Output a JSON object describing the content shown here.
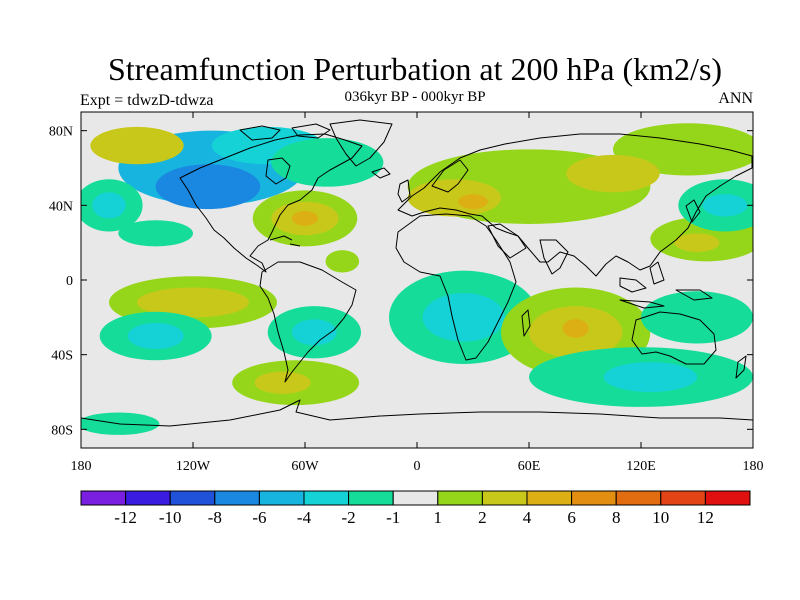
{
  "title": "Streamfunction Perturbation at 200 hPa (km2/s)",
  "subtitle": "036kyr BP - 000kyr BP",
  "left_label": "Expt = tdwzD-tdwza",
  "right_label": "ANN",
  "map": {
    "projection": "cylindrical equidistant",
    "lon_range": [
      -180,
      180
    ],
    "lat_range": [
      -90,
      90
    ],
    "background_color": "#e8e8e8",
    "y_ticks": [
      {
        "lat": 80,
        "label": "80N"
      },
      {
        "lat": 40,
        "label": "40N"
      },
      {
        "lat": 0,
        "label": "0"
      },
      {
        "lat": -40,
        "label": "40S"
      },
      {
        "lat": -80,
        "label": "80S"
      }
    ],
    "x_ticks": [
      {
        "lon": -180,
        "label": "180"
      },
      {
        "lon": -120,
        "label": "120W"
      },
      {
        "lon": -60,
        "label": "60W"
      },
      {
        "lon": 0,
        "label": "0"
      },
      {
        "lon": 60,
        "label": "60E"
      },
      {
        "lon": 120,
        "label": "120E"
      },
      {
        "lon": 180,
        "label": "180"
      }
    ]
  },
  "colorbar": {
    "colors": [
      "#7a1fe0",
      "#3a1be0",
      "#1f52d8",
      "#1a87e0",
      "#18b4e0",
      "#14d2d6",
      "#16dc9a",
      "#e8e8e8",
      "#96d61a",
      "#c8c81a",
      "#dcb014",
      "#e28e10",
      "#e26c10",
      "#e24416",
      "#e01010"
    ],
    "labels": [
      "-12",
      "-10",
      "-8",
      "-6",
      "-4",
      "-2",
      "-1",
      "1",
      "2",
      "4",
      "6",
      "8",
      "10",
      "12"
    ]
  },
  "anomalies": [
    {
      "lon": -110,
      "lat": 60,
      "rx": 50,
      "ry": 20,
      "level": 4
    },
    {
      "lon": -112,
      "lat": 50,
      "rx": 28,
      "ry": 12,
      "level": 3
    },
    {
      "lon": -80,
      "lat": 72,
      "rx": 30,
      "ry": 10,
      "level": 5
    },
    {
      "lon": -150,
      "lat": 72,
      "rx": 25,
      "ry": 10,
      "level": 9
    },
    {
      "lon": -165,
      "lat": 40,
      "rx": 18,
      "ry": 14,
      "level": 6
    },
    {
      "lon": -165,
      "lat": 40,
      "rx": 9,
      "ry": 7,
      "level": 5
    },
    {
      "lon": -140,
      "lat": 25,
      "rx": 20,
      "ry": 7,
      "level": 6
    },
    {
      "lon": -60,
      "lat": 33,
      "rx": 28,
      "ry": 15,
      "level": 8
    },
    {
      "lon": -60,
      "lat": 33,
      "rx": 18,
      "ry": 9,
      "level": 9
    },
    {
      "lon": -60,
      "lat": 33,
      "rx": 7,
      "ry": 4,
      "level": 10
    },
    {
      "lon": -40,
      "lat": 10,
      "rx": 9,
      "ry": 6,
      "level": 8
    },
    {
      "lon": -48,
      "lat": 63,
      "rx": 30,
      "ry": 13,
      "level": 6
    },
    {
      "lon": 60,
      "lat": 50,
      "rx": 65,
      "ry": 20,
      "level": 8
    },
    {
      "lon": 20,
      "lat": 44,
      "rx": 25,
      "ry": 10,
      "level": 9
    },
    {
      "lon": 30,
      "lat": 42,
      "rx": 8,
      "ry": 4,
      "level": 10
    },
    {
      "lon": 145,
      "lat": 70,
      "rx": 40,
      "ry": 14,
      "level": 8
    },
    {
      "lon": 105,
      "lat": 57,
      "rx": 25,
      "ry": 10,
      "level": 9
    },
    {
      "lon": 155,
      "lat": 22,
      "rx": 30,
      "ry": 12,
      "level": 8
    },
    {
      "lon": 150,
      "lat": 20,
      "rx": 12,
      "ry": 5,
      "level": 9
    },
    {
      "lon": 165,
      "lat": 40,
      "rx": 25,
      "ry": 14,
      "level": 6
    },
    {
      "lon": 165,
      "lat": 40,
      "rx": 12,
      "ry": 6,
      "level": 5
    },
    {
      "lon": -120,
      "lat": -12,
      "rx": 45,
      "ry": 14,
      "level": 8
    },
    {
      "lon": -120,
      "lat": -12,
      "rx": 30,
      "ry": 8,
      "level": 9
    },
    {
      "lon": -140,
      "lat": -30,
      "rx": 30,
      "ry": 13,
      "level": 6
    },
    {
      "lon": -140,
      "lat": -30,
      "rx": 15,
      "ry": 7,
      "level": 5
    },
    {
      "lon": -55,
      "lat": -28,
      "rx": 25,
      "ry": 14,
      "level": 6
    },
    {
      "lon": -55,
      "lat": -28,
      "rx": 12,
      "ry": 7,
      "level": 5
    },
    {
      "lon": -65,
      "lat": -55,
      "rx": 34,
      "ry": 12,
      "level": 8
    },
    {
      "lon": -72,
      "lat": -55,
      "rx": 15,
      "ry": 6,
      "level": 9
    },
    {
      "lon": -160,
      "lat": -77,
      "rx": 22,
      "ry": 6,
      "level": 6
    },
    {
      "lon": 25,
      "lat": -20,
      "rx": 40,
      "ry": 25,
      "level": 6
    },
    {
      "lon": 25,
      "lat": -20,
      "rx": 22,
      "ry": 13,
      "level": 5
    },
    {
      "lon": 85,
      "lat": -28,
      "rx": 40,
      "ry": 24,
      "level": 8
    },
    {
      "lon": 85,
      "lat": -28,
      "rx": 25,
      "ry": 14,
      "level": 9
    },
    {
      "lon": 85,
      "lat": -26,
      "rx": 7,
      "ry": 5,
      "level": 10
    },
    {
      "lon": 150,
      "lat": -20,
      "rx": 30,
      "ry": 14,
      "level": 6
    },
    {
      "lon": 120,
      "lat": -52,
      "rx": 60,
      "ry": 16,
      "level": 6
    },
    {
      "lon": 125,
      "lat": -52,
      "rx": 25,
      "ry": 8,
      "level": 5
    }
  ]
}
